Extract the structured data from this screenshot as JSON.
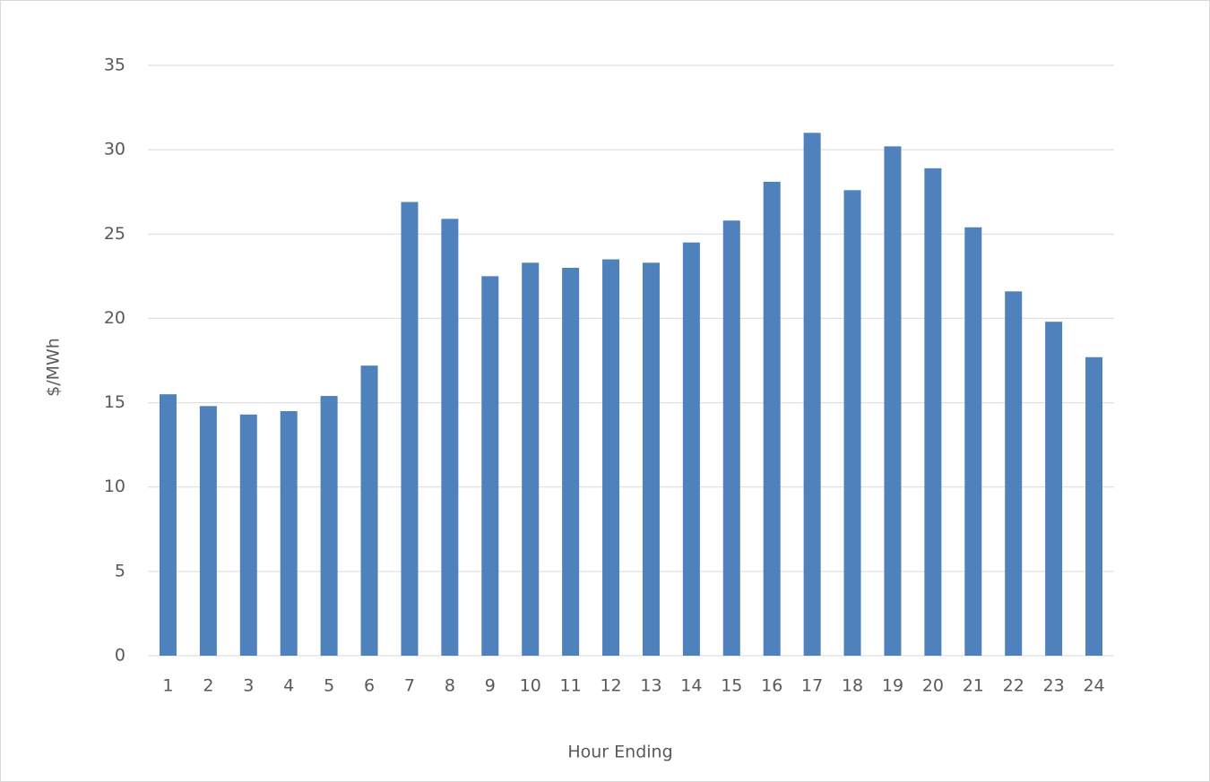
{
  "chart_data": {
    "type": "bar",
    "x_label": "Hour Ending",
    "y_label": "$/MWh",
    "categories": [
      "1",
      "2",
      "3",
      "4",
      "5",
      "6",
      "7",
      "8",
      "9",
      "10",
      "11",
      "12",
      "13",
      "14",
      "15",
      "16",
      "17",
      "18",
      "19",
      "20",
      "21",
      "22",
      "23",
      "24"
    ],
    "values": [
      15.5,
      14.8,
      14.3,
      14.5,
      15.4,
      17.2,
      26.9,
      25.9,
      22.5,
      23.3,
      23.0,
      23.5,
      23.3,
      24.5,
      25.8,
      28.1,
      31.0,
      27.6,
      30.2,
      28.9,
      25.4,
      21.6,
      19.8,
      17.7
    ],
    "color": "#4f81bd",
    "ylim": [
      0,
      35
    ],
    "yticks": [
      0,
      5,
      10,
      15,
      20,
      25,
      30,
      35
    ],
    "grid": true
  }
}
